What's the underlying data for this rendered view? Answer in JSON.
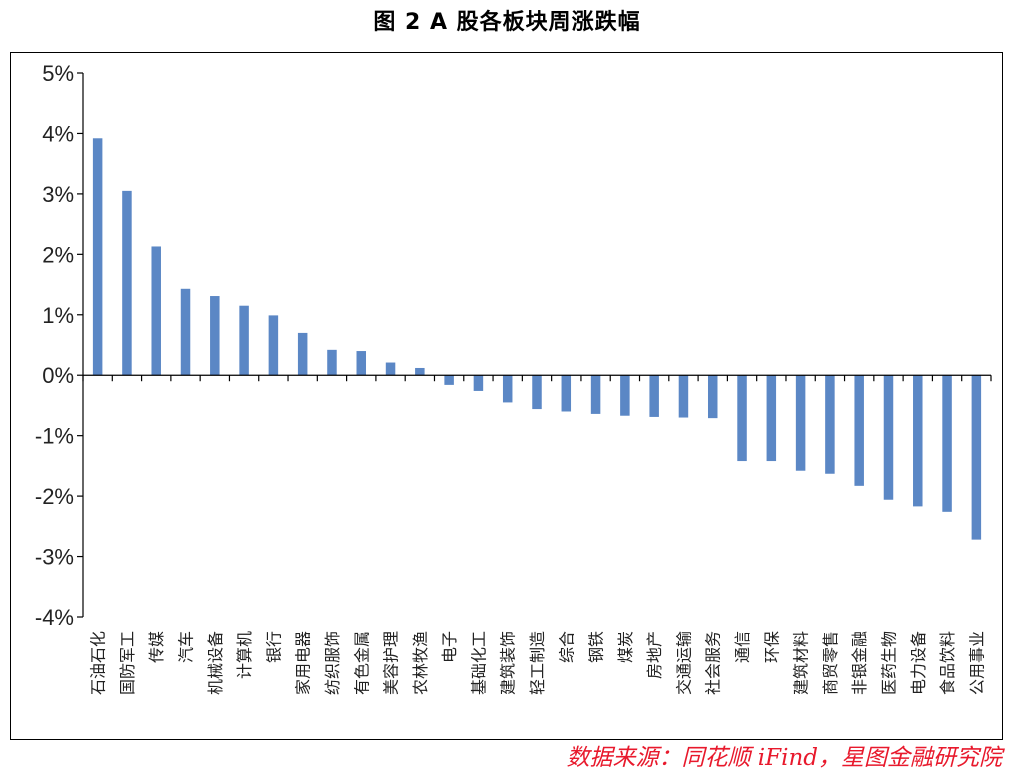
{
  "chart_data": {
    "type": "bar",
    "title": "图 2 A 股各板块周涨跌幅",
    "xlabel": "",
    "ylabel": "",
    "ylim": [
      -4,
      5
    ],
    "yticks": [
      "5%",
      "4%",
      "3%",
      "2%",
      "1%",
      "0%",
      "-1%",
      "-2%",
      "-3%",
      "-4%"
    ],
    "ytick_values": [
      5,
      4,
      3,
      2,
      1,
      0,
      -1,
      -2,
      -3,
      -4
    ],
    "grid": false,
    "legend": "none",
    "bar_color": "#5b87c5",
    "categories": [
      "石油石化",
      "国防军工",
      "传媒",
      "汽车",
      "机械设备",
      "计算机",
      "银行",
      "家用电器",
      "纺织服饰",
      "有色金属",
      "美容护理",
      "农林牧渔",
      "电子",
      "基础化工",
      "建筑装饰",
      "轻工制造",
      "综合",
      "钢铁",
      "煤炭",
      "房地产",
      "交通运输",
      "社会服务",
      "通信",
      "环保",
      "建筑材料",
      "商贸零售",
      "非银金融",
      "医药生物",
      "电力设备",
      "食品饮料",
      "公用事业"
    ],
    "values": [
      3.92,
      3.05,
      2.13,
      1.43,
      1.31,
      1.15,
      0.99,
      0.7,
      0.42,
      0.4,
      0.21,
      0.12,
      -0.16,
      -0.26,
      -0.45,
      -0.56,
      -0.6,
      -0.64,
      -0.67,
      -0.69,
      -0.7,
      -0.71,
      -1.42,
      -1.42,
      -1.58,
      -1.63,
      -1.83,
      -2.06,
      -2.17,
      -2.26,
      -2.72
    ]
  },
  "source": "数据来源：同花顺 iFind，星图金融研究院"
}
